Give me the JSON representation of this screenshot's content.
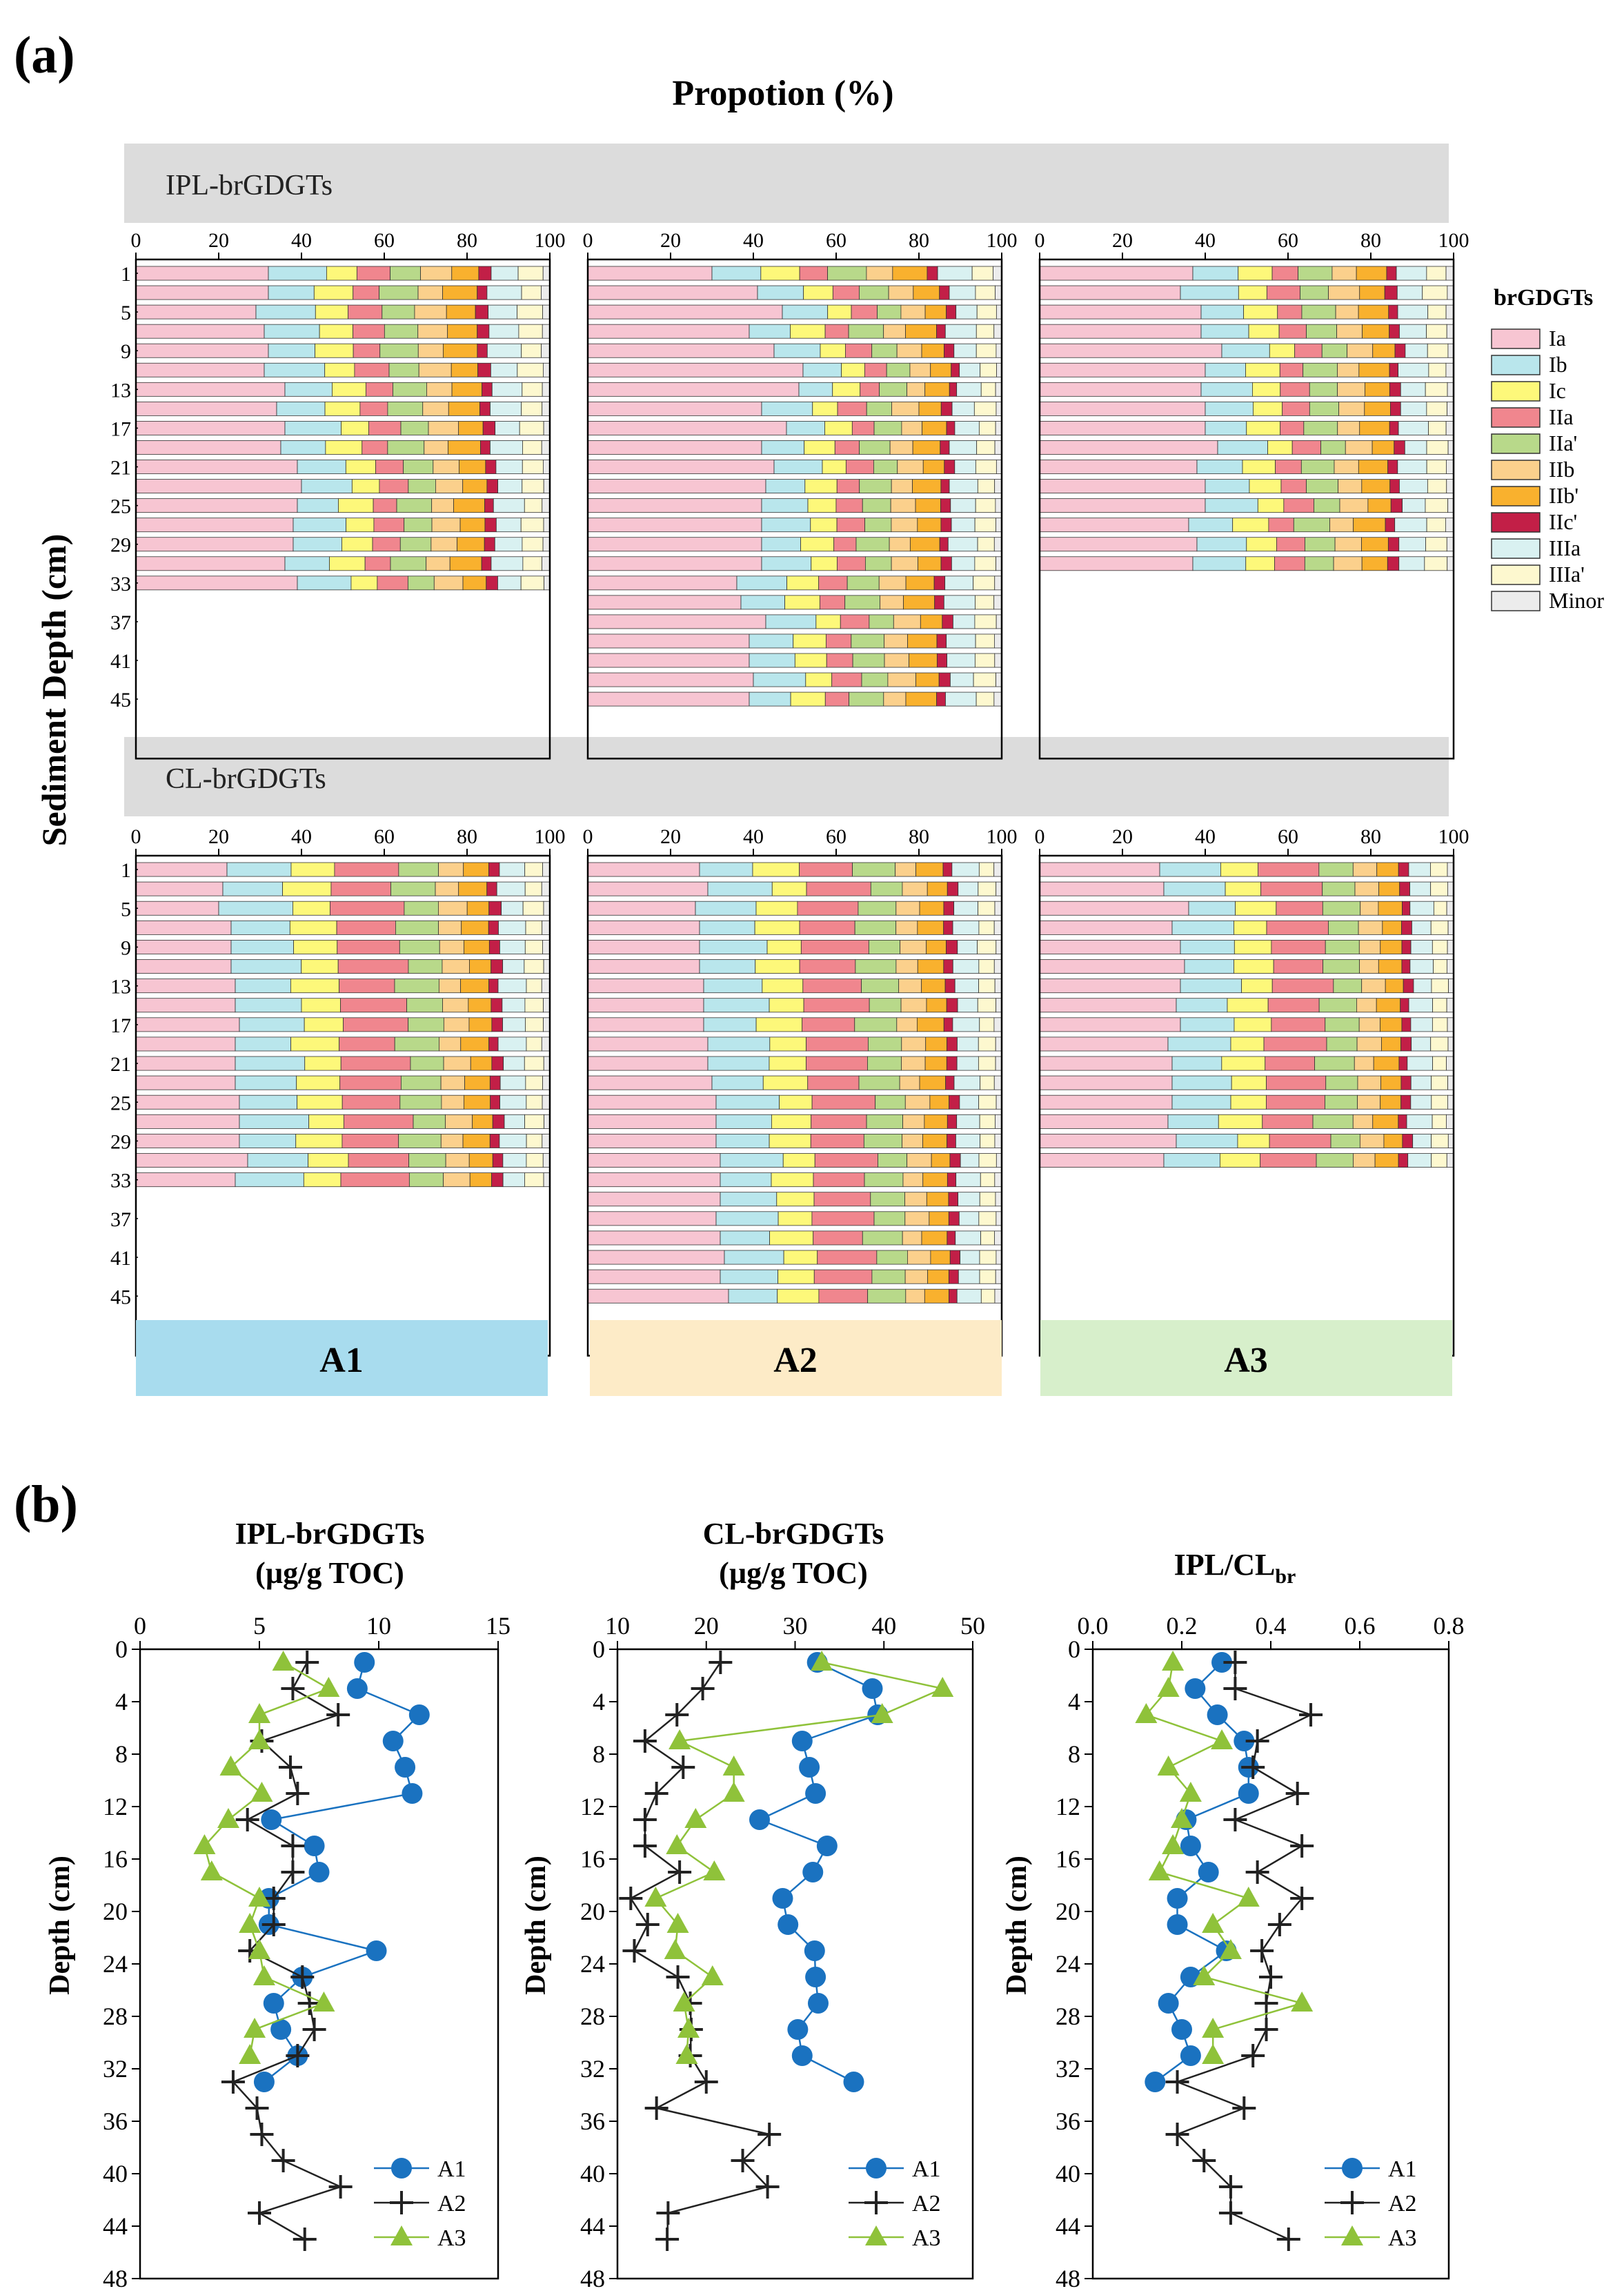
{
  "panel_a": {
    "label": "(a)",
    "title": "Propotion (%)",
    "ylabel": "Sediment Depth (cm)",
    "sections": [
      "IPL-brGDGTs",
      "CL-brGDGTs"
    ],
    "sites": [
      "A1",
      "A2",
      "A3"
    ],
    "site_colors": [
      "#a8dcee",
      "#fdebc7",
      "#d7efcb"
    ],
    "x_ticks": [
      0,
      20,
      40,
      60,
      80,
      100
    ],
    "depth_ticks": [
      1,
      5,
      9,
      13,
      17,
      21,
      25,
      29,
      33,
      37,
      41,
      45
    ],
    "legend_title": "brGDGTs",
    "components": [
      "Ia",
      "Ib",
      "Ic",
      "IIa",
      "IIa'",
      "IIb",
      "IIb'",
      "IIc'",
      "IIIa",
      "IIIa'",
      "Minor"
    ],
    "component_colors": [
      "#f7c5d2",
      "#b9e6ec",
      "#fdf87a",
      "#f0868e",
      "#b8d98a",
      "#fbd08c",
      "#f9b12e",
      "#c21f47",
      "#d9f1f1",
      "#fdf8cf",
      "#ececec"
    ]
  },
  "chart_data": [
    {
      "type": "bar",
      "stacked": true,
      "orientation": "horizontal",
      "section": "IPL-brGDGTs",
      "units": "%",
      "components": [
        "Ia",
        "Ib",
        "Ic",
        "IIa",
        "IIa'",
        "IIb",
        "IIb'",
        "IIc'",
        "IIIa",
        "IIIa'",
        "Minor"
      ],
      "sites": [
        {
          "name": "A1",
          "depths": [
            1,
            3,
            5,
            7,
            9,
            11,
            13,
            15,
            17,
            19,
            21,
            23,
            25,
            27,
            29,
            31,
            33
          ],
          "Ia": [
            32,
            32,
            29,
            31,
            32,
            31,
            36,
            34,
            36,
            35,
            39,
            40,
            39,
            38,
            38,
            36,
            39
          ]
        },
        {
          "name": "A2",
          "depths": [
            1,
            3,
            5,
            7,
            9,
            11,
            13,
            15,
            17,
            19,
            21,
            23,
            25,
            27,
            29,
            31,
            33,
            35,
            37,
            39,
            41,
            43,
            45
          ],
          "Ia": [
            30,
            41,
            47,
            39,
            45,
            52,
            51,
            42,
            48,
            42,
            45,
            43,
            42,
            42,
            42,
            42,
            36,
            37,
            43,
            39,
            39,
            40,
            39
          ]
        },
        {
          "name": "A3",
          "depths": [
            1,
            3,
            5,
            7,
            9,
            11,
            13,
            15,
            17,
            19,
            21,
            23,
            25,
            27,
            29,
            31
          ],
          "Ia": [
            37,
            34,
            39,
            39,
            44,
            40,
            39,
            40,
            40,
            43,
            38,
            40,
            40,
            36,
            38,
            37
          ]
        }
      ]
    },
    {
      "type": "bar",
      "stacked": true,
      "orientation": "horizontal",
      "section": "CL-brGDGTs",
      "units": "%",
      "components": [
        "Ia",
        "Ib",
        "Ic",
        "IIa",
        "IIa'",
        "IIb",
        "IIb'",
        "IIc'",
        "IIIa",
        "IIIa'",
        "Minor"
      ],
      "sites": [
        {
          "name": "A1",
          "depths": [
            1,
            3,
            5,
            7,
            9,
            11,
            13,
            15,
            17,
            19,
            21,
            23,
            25,
            27,
            29,
            31,
            33
          ],
          "Ia": [
            22,
            21,
            20,
            23,
            23,
            23,
            24,
            24,
            25,
            24,
            24,
            24,
            25,
            25,
            25,
            27,
            24
          ]
        },
        {
          "name": "A2",
          "depths": [
            1,
            3,
            5,
            7,
            9,
            11,
            13,
            15,
            17,
            19,
            21,
            23,
            25,
            27,
            29,
            31,
            33,
            35,
            37,
            39,
            41,
            43,
            45
          ],
          "Ia": [
            27,
            29,
            26,
            27,
            27,
            27,
            28,
            28,
            28,
            29,
            29,
            30,
            31,
            31,
            31,
            32,
            32,
            32,
            31,
            32,
            33,
            32,
            34
          ]
        },
        {
          "name": "A3",
          "depths": [
            1,
            3,
            5,
            7,
            9,
            11,
            13,
            15,
            17,
            19,
            21,
            23,
            25,
            27,
            29,
            31
          ],
          "Ia": [
            29,
            30,
            36,
            32,
            34,
            35,
            34,
            33,
            34,
            31,
            32,
            32,
            32,
            31,
            33,
            30
          ]
        }
      ]
    },
    {
      "type": "line",
      "title": "IPL-brGDGTs (µg/g TOC)",
      "xlabel": "IPL-brGDGTs (µg/g TOC)",
      "ylabel": "Depth (cm)",
      "xlim": [
        0,
        15
      ],
      "ylim": [
        48,
        0
      ],
      "x_ticks": [
        0,
        5,
        10,
        15
      ],
      "y_ticks": [
        0,
        4,
        8,
        12,
        16,
        20,
        24,
        28,
        32,
        36,
        40,
        44,
        48
      ],
      "series": [
        {
          "name": "A1",
          "depth": [
            1,
            3,
            5,
            7,
            9,
            11,
            13,
            15,
            17,
            19,
            21,
            23,
            25,
            27,
            29,
            31,
            33
          ],
          "values": [
            9.4,
            9.1,
            11.7,
            10.6,
            11.1,
            11.4,
            5.5,
            7.3,
            7.5,
            5.4,
            5.4,
            9.9,
            6.8,
            5.6,
            5.9,
            6.6,
            5.2
          ]
        },
        {
          "name": "A2",
          "depth": [
            1,
            3,
            5,
            7,
            9,
            11,
            13,
            15,
            17,
            19,
            21,
            23,
            25,
            27,
            29,
            31,
            33,
            35,
            37,
            39,
            41,
            43,
            45
          ],
          "values": [
            7.0,
            6.4,
            8.3,
            5.1,
            6.3,
            6.6,
            4.5,
            6.4,
            6.4,
            5.6,
            5.6,
            4.6,
            6.8,
            7.1,
            7.3,
            6.6,
            3.9,
            4.9,
            5.1,
            6.0,
            8.4,
            5.0,
            6.9
          ]
        },
        {
          "name": "A3",
          "depth": [
            1,
            3,
            5,
            7,
            9,
            11,
            13,
            15,
            17,
            19,
            21,
            23,
            25,
            27,
            29,
            31
          ],
          "values": [
            6.0,
            7.9,
            5.0,
            5.0,
            3.8,
            5.1,
            3.7,
            2.7,
            3.0,
            5.0,
            4.6,
            5.0,
            5.2,
            7.7,
            4.8,
            4.6
          ]
        }
      ],
      "legend": [
        "A1",
        "A2",
        "A3"
      ]
    },
    {
      "type": "line",
      "title": "CL-brGDGTs (µg/g TOC)",
      "xlabel": "CL-brGDGTs (µg/g TOC)",
      "ylabel": "Depth (cm)",
      "xlim": [
        10,
        50
      ],
      "ylim": [
        48,
        0
      ],
      "x_ticks": [
        10,
        20,
        30,
        40,
        50
      ],
      "y_ticks": [
        0,
        4,
        8,
        12,
        16,
        20,
        24,
        28,
        32,
        36,
        40,
        44,
        48
      ],
      "series": [
        {
          "name": "A1",
          "depth": [
            1,
            3,
            5,
            7,
            9,
            11,
            13,
            15,
            17,
            19,
            21,
            23,
            25,
            27,
            29,
            31,
            33
          ],
          "values": [
            32.5,
            38.7,
            39.3,
            30.8,
            31.6,
            32.3,
            26.0,
            33.6,
            32.0,
            28.6,
            29.2,
            32.2,
            32.3,
            32.6,
            30.3,
            30.8,
            36.6
          ]
        },
        {
          "name": "A2",
          "depth": [
            1,
            3,
            5,
            7,
            9,
            11,
            13,
            15,
            17,
            19,
            21,
            23,
            25,
            27,
            29,
            31,
            33,
            35,
            37,
            39,
            41,
            43,
            45
          ],
          "values": [
            21.6,
            19.6,
            16.7,
            13.1,
            17.4,
            14.4,
            13.1,
            13.1,
            17.0,
            11.5,
            13.4,
            11.9,
            16.8,
            18.2,
            18.3,
            18.2,
            20.0,
            14.4,
            27.1,
            24.1,
            26.9,
            15.7,
            15.6
          ]
        },
        {
          "name": "A3",
          "depth": [
            1,
            3,
            5,
            7,
            9,
            11,
            13,
            15,
            17,
            19,
            21,
            23,
            25,
            27,
            29,
            31
          ],
          "values": [
            33.0,
            46.6,
            39.8,
            17.0,
            23.1,
            23.1,
            18.8,
            16.7,
            20.9,
            14.3,
            16.8,
            16.5,
            20.7,
            17.5,
            18.0,
            17.8
          ]
        }
      ],
      "legend": [
        "A1",
        "A2",
        "A3"
      ]
    },
    {
      "type": "line",
      "title": "IPL/CLbr",
      "xlabel": "IPL/CL",
      "xlabel_subscript": "br",
      "ylabel": "Depth (cm)",
      "xlim": [
        0.0,
        0.8
      ],
      "ylim": [
        48,
        0
      ],
      "x_ticks": [
        "0.0",
        "0.2",
        "0.4",
        "0.6",
        "0.8"
      ],
      "y_ticks": [
        0,
        4,
        8,
        12,
        16,
        20,
        24,
        28,
        32,
        36,
        40,
        44,
        48
      ],
      "series": [
        {
          "name": "A1",
          "depth": [
            1,
            3,
            5,
            7,
            9,
            11,
            13,
            15,
            17,
            19,
            21,
            23,
            25,
            27,
            29,
            31,
            33
          ],
          "values": [
            0.29,
            0.23,
            0.28,
            0.34,
            0.35,
            0.35,
            0.21,
            0.22,
            0.26,
            0.19,
            0.19,
            0.3,
            0.22,
            0.17,
            0.2,
            0.22,
            0.14
          ]
        },
        {
          "name": "A2",
          "depth": [
            1,
            3,
            5,
            7,
            9,
            11,
            13,
            15,
            17,
            19,
            21,
            23,
            25,
            27,
            29,
            31,
            33,
            35,
            37,
            39,
            41,
            43,
            45
          ],
          "values": [
            0.32,
            0.32,
            0.49,
            0.37,
            0.36,
            0.46,
            0.32,
            0.47,
            0.37,
            0.47,
            0.42,
            0.38,
            0.4,
            0.39,
            0.39,
            0.36,
            0.19,
            0.34,
            0.19,
            0.25,
            0.31,
            0.31,
            0.44
          ]
        },
        {
          "name": "A3",
          "depth": [
            1,
            3,
            5,
            7,
            9,
            11,
            13,
            15,
            17,
            19,
            21,
            23,
            25,
            27,
            29,
            31
          ],
          "values": [
            0.18,
            0.17,
            0.12,
            0.29,
            0.17,
            0.22,
            0.2,
            0.18,
            0.15,
            0.35,
            0.27,
            0.31,
            0.25,
            0.47,
            0.27,
            0.27
          ]
        }
      ],
      "legend": [
        "A1",
        "A2",
        "A3"
      ]
    }
  ],
  "panel_b": {
    "label": "(b)",
    "titles": [
      [
        "IPL-brGDGTs",
        "(µg/g TOC)"
      ],
      [
        "CL-brGDGTs",
        "(µg/g TOC)"
      ],
      [
        "IPL/CL",
        "br"
      ]
    ],
    "ylabel": "Depth (cm)",
    "legend": [
      "A1",
      "A2",
      "A3"
    ],
    "series_colors": {
      "A1": "#1a72c0",
      "A2": "#222222",
      "A3": "#8fc23a"
    }
  }
}
